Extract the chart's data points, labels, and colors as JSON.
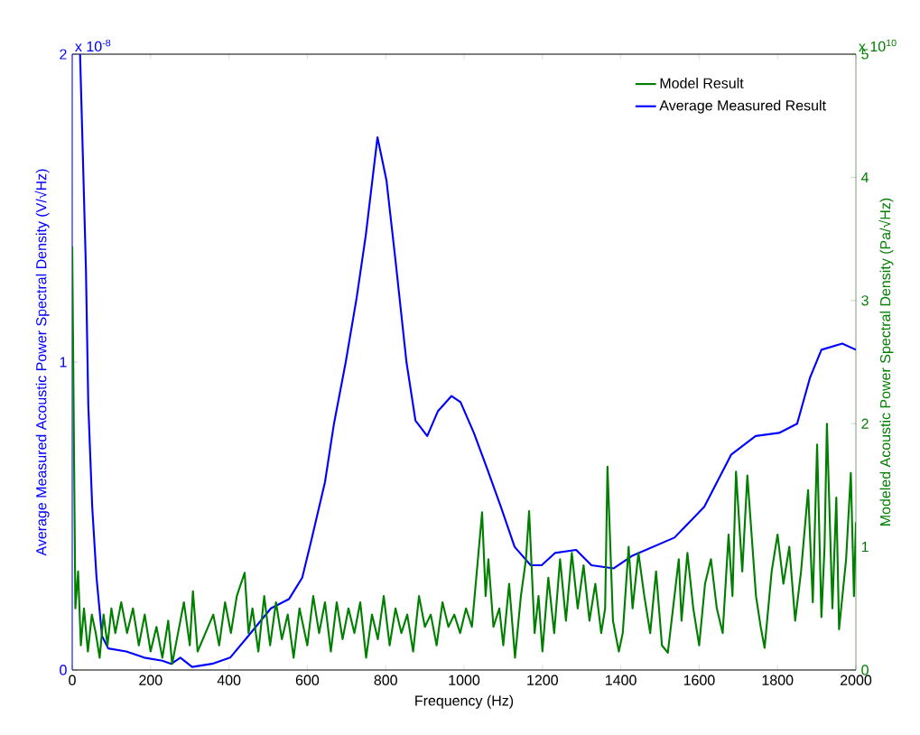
{
  "chart_data": {
    "type": "line",
    "xlabel": "Frequency (Hz)",
    "ylabel": "Average Measured Acoustic Power Spectral Density (V/√Hz)",
    "y2label": "Modeled Acoustic Power Spectral Density (Pa/√Hz)",
    "annotations": [
      "x 10$^{-8}$",
      "x 10$^{10}$"
    ],
    "xlim": [
      0,
      2000
    ],
    "xticks": [
      0,
      200,
      400,
      600,
      800,
      1000,
      1200,
      1400,
      1600,
      1800,
      2000
    ],
    "ylim": [
      0,
      2
    ],
    "yticks": [
      0,
      1,
      2
    ],
    "y2lim": [
      0,
      5
    ],
    "y2ticks": [
      0,
      1,
      2,
      3,
      4,
      5
    ],
    "legend": "top right",
    "grid": false,
    "series": [
      {
        "name": "Model Result",
        "color": "#007f00",
        "axis": "y2",
        "x": [
          0,
          8,
          15,
          22,
          30,
          40,
          50,
          60,
          70,
          80,
          90,
          100,
          110,
          125,
          140,
          155,
          170,
          185,
          200,
          215,
          230,
          245,
          255,
          270,
          285,
          300,
          308,
          320,
          340,
          360,
          375,
          390,
          405,
          420,
          440,
          450,
          460,
          475,
          490,
          505,
          520,
          535,
          550,
          565,
          580,
          600,
          615,
          630,
          645,
          660,
          675,
          690,
          705,
          720,
          735,
          750,
          765,
          780,
          795,
          810,
          825,
          840,
          855,
          870,
          885,
          900,
          915,
          930,
          945,
          960,
          975,
          990,
          1005,
          1020,
          1046,
          1055,
          1062,
          1075,
          1090,
          1100,
          1115,
          1130,
          1145,
          1158,
          1166,
          1180,
          1190,
          1200,
          1215,
          1230,
          1245,
          1260,
          1275,
          1290,
          1305,
          1320,
          1335,
          1350,
          1360,
          1366,
          1380,
          1395,
          1405,
          1420,
          1430,
          1445,
          1460,
          1475,
          1490,
          1505,
          1520,
          1548,
          1555,
          1570,
          1585,
          1600,
          1615,
          1630,
          1645,
          1660,
          1675,
          1685,
          1694,
          1710,
          1723,
          1745,
          1757,
          1767,
          1785,
          1800,
          1815,
          1830,
          1845,
          1860,
          1878,
          1890,
          1901,
          1912,
          1920,
          1926,
          1940,
          1950,
          1957,
          1975,
          1987,
          1995,
          2000
        ],
        "values": [
          3.44,
          0.5,
          0.8,
          0.2,
          0.5,
          0.15,
          0.45,
          0.3,
          0.1,
          0.45,
          0.2,
          0.5,
          0.3,
          0.55,
          0.3,
          0.5,
          0.2,
          0.45,
          0.15,
          0.35,
          0.1,
          0.4,
          0.05,
          0.3,
          0.55,
          0.2,
          0.64,
          0.15,
          0.3,
          0.45,
          0.2,
          0.55,
          0.3,
          0.6,
          0.79,
          0.3,
          0.5,
          0.15,
          0.6,
          0.2,
          0.55,
          0.25,
          0.45,
          0.1,
          0.5,
          0.2,
          0.6,
          0.3,
          0.55,
          0.15,
          0.55,
          0.25,
          0.5,
          0.3,
          0.55,
          0.1,
          0.45,
          0.25,
          0.6,
          0.2,
          0.5,
          0.3,
          0.45,
          0.15,
          0.6,
          0.35,
          0.45,
          0.2,
          0.55,
          0.35,
          0.45,
          0.3,
          0.5,
          0.35,
          1.28,
          0.6,
          0.9,
          0.35,
          0.5,
          0.2,
          0.7,
          0.1,
          0.6,
          0.9,
          1.29,
          0.3,
          0.6,
          0.15,
          0.75,
          0.3,
          0.9,
          0.4,
          0.95,
          0.5,
          0.85,
          0.4,
          0.7,
          0.3,
          0.5,
          1.65,
          0.4,
          0.15,
          0.3,
          1.0,
          0.5,
          0.95,
          0.6,
          0.3,
          0.8,
          0.2,
          0.14,
          0.9,
          0.4,
          0.95,
          0.5,
          0.2,
          0.7,
          0.9,
          0.5,
          0.3,
          1.1,
          0.6,
          1.61,
          0.8,
          1.58,
          0.6,
          0.35,
          0.18,
          0.8,
          1.1,
          0.7,
          1.0,
          0.4,
          0.8,
          1.46,
          0.55,
          1.83,
          0.43,
          1.0,
          2.0,
          0.5,
          1.4,
          0.33,
          0.9,
          1.6,
          0.6,
          1.2
        ]
      },
      {
        "name": "Average Measured Result",
        "color": "#0000ff",
        "x": [
          20,
          28,
          35,
          41,
          51,
          62,
          76,
          92,
          138,
          184,
          230,
          253,
          276,
          306,
          357,
          403,
          449,
          507,
          553,
          587,
          610,
          645,
          668,
          698,
          726,
          749,
          779,
          802,
          825,
          853,
          876,
          906,
          933,
          968,
          991,
          1025,
          1060,
          1094,
          1129,
          1170,
          1198,
          1232,
          1286,
          1325,
          1382,
          1428,
          1537,
          1613,
          1682,
          1744,
          1804,
          1850,
          1883,
          1912,
          1965,
          2000
        ],
        "values": [
          2.0,
          1.63,
          1.3,
          0.86,
          0.53,
          0.3,
          0.11,
          0.07,
          0.06,
          0.04,
          0.03,
          0.02,
          0.04,
          0.01,
          0.02,
          0.04,
          0.11,
          0.2,
          0.23,
          0.3,
          0.42,
          0.61,
          0.8,
          1.0,
          1.21,
          1.41,
          1.73,
          1.59,
          1.33,
          1.0,
          0.81,
          0.76,
          0.84,
          0.89,
          0.87,
          0.77,
          0.65,
          0.53,
          0.4,
          0.34,
          0.34,
          0.38,
          0.39,
          0.34,
          0.33,
          0.37,
          0.43,
          0.53,
          0.7,
          0.76,
          0.77,
          0.8,
          0.95,
          1.04,
          1.06,
          1.04
        ]
      }
    ]
  }
}
